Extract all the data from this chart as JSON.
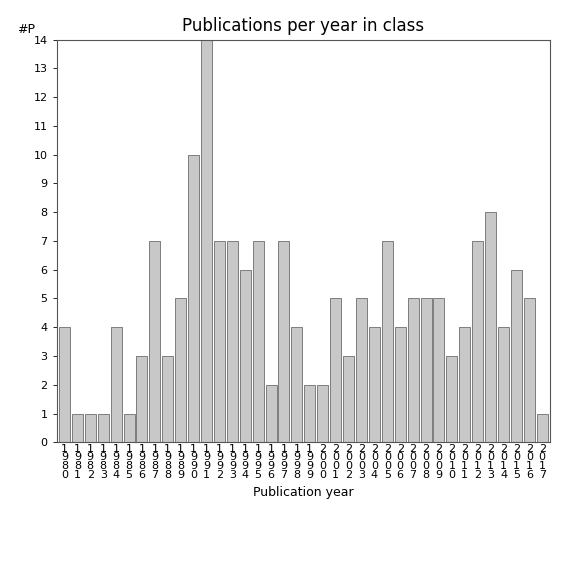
{
  "title": "Publications per year in class",
  "xlabel": "Publication year",
  "ylabel": "#P",
  "bar_color": "#c8c8c8",
  "bar_edgecolor": "#555555",
  "years": [
    "1980",
    "1981",
    "1982",
    "1983",
    "1984",
    "1985",
    "1986",
    "1987",
    "1988",
    "1989",
    "1990",
    "1991",
    "1992",
    "1993",
    "1994",
    "1995",
    "1996",
    "1997",
    "1998",
    "1999",
    "2000",
    "2001",
    "2002",
    "2003",
    "2004",
    "2005",
    "2006",
    "2007",
    "2008",
    "2009",
    "2010",
    "2011",
    "2012",
    "2013",
    "2014",
    "2015",
    "2016",
    "2017"
  ],
  "values": [
    4,
    1,
    1,
    1,
    4,
    1,
    3,
    7,
    3,
    5,
    10,
    14,
    7,
    7,
    6,
    7,
    2,
    7,
    4,
    2,
    2,
    5,
    3,
    5,
    4,
    7,
    4,
    5,
    5,
    5,
    3,
    4,
    7,
    8,
    4,
    6,
    5,
    1
  ],
  "ylim": [
    0,
    14
  ],
  "yticks": [
    0,
    1,
    2,
    3,
    4,
    5,
    6,
    7,
    8,
    9,
    10,
    11,
    12,
    13,
    14
  ],
  "background_color": "#ffffff",
  "title_fontsize": 12,
  "label_fontsize": 9,
  "tick_fontsize": 8
}
